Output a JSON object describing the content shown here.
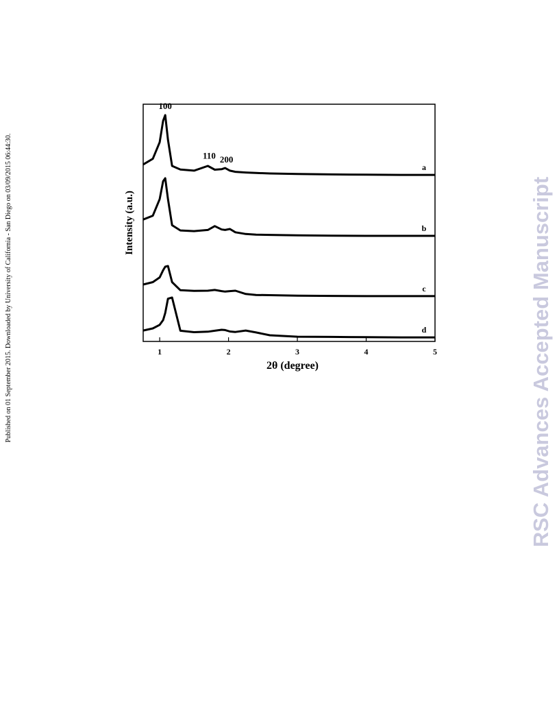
{
  "side_note": "Published on 01 September 2015. Downloaded by University of California - San Diego on 03/09/2015 06:44:30.",
  "watermark": "RSC Advances Accepted Manuscript",
  "chart_data": {
    "type": "line",
    "xlabel": "2θ (degree)",
    "ylabel": "Intensity (a.u.)",
    "xlim": [
      0.76,
      5
    ],
    "xticks": [
      1,
      2,
      3,
      4,
      5
    ],
    "ylim": [
      0,
      100
    ],
    "x": [
      0.76,
      0.9,
      1.0,
      1.05,
      1.08,
      1.12,
      1.18,
      1.3,
      1.5,
      1.7,
      1.8,
      1.9,
      1.95,
      2.02,
      2.1,
      2.25,
      2.4,
      2.6,
      3,
      3.5,
      4,
      4.5,
      5
    ],
    "series": [
      {
        "name": "a",
        "color": "#000000",
        "values": [
          74.6,
          77,
          84,
          93,
          95.4,
          85,
          74,
          72.5,
          72,
          74,
          72.4,
          72.6,
          73.1,
          72,
          71.5,
          71.2,
          71,
          70.8,
          70.6,
          70.4,
          70.3,
          70.2,
          70.2
        ]
      },
      {
        "name": "b",
        "color": "#000000",
        "values": [
          51.4,
          53,
          60,
          67.5,
          68.8,
          60,
          49,
          46.8,
          46.5,
          47,
          48.6,
          47.2,
          47,
          47.4,
          46,
          45.3,
          45,
          44.9,
          44.7,
          44.6,
          44.5,
          44.5,
          44.5
        ]
      },
      {
        "name": "c",
        "color": "#000000",
        "values": [
          24,
          25,
          27,
          30,
          31.5,
          31.8,
          25,
          21.6,
          21.3,
          21.4,
          21.7,
          21.2,
          21,
          21.2,
          21.4,
          20,
          19.6,
          19.5,
          19.3,
          19.2,
          19.1,
          19.1,
          19.1
        ]
      },
      {
        "name": "d",
        "color": "#000000",
        "values": [
          4.6,
          5.5,
          7,
          9,
          12,
          18,
          18.5,
          4.5,
          3.9,
          4.1,
          4.5,
          4.9,
          4.8,
          4.2,
          4,
          4.6,
          3.8,
          2.6,
          2,
          1.9,
          1.8,
          1.7,
          1.7
        ]
      }
    ],
    "annotations": [
      {
        "text": "100",
        "x": 1.08,
        "y": 98
      },
      {
        "text": "110",
        "x": 1.72,
        "y": 77
      },
      {
        "text": "200",
        "x": 1.97,
        "y": 75.5
      }
    ]
  }
}
